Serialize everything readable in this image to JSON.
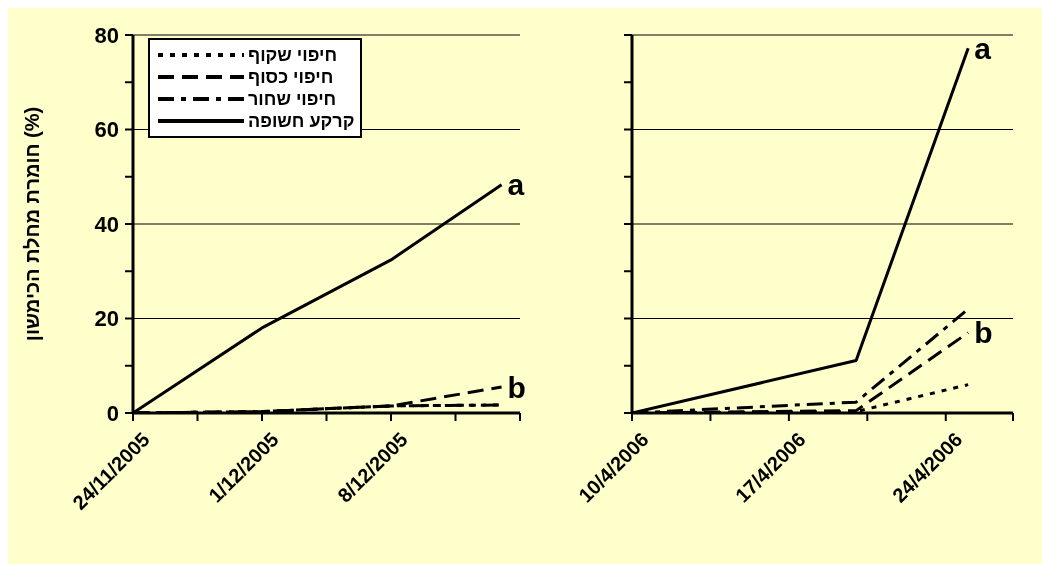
{
  "chart_data": [
    {
      "type": "line",
      "ylabel": "חומרת מחלת הכימשון (%)",
      "xlim": [
        "2005-11-24",
        "2005-12-15"
      ],
      "xticks": [
        {
          "value": "2005-11-24",
          "label": "24/11/2005"
        },
        {
          "value": "2005-11-27T12:00",
          "label": null
        },
        {
          "value": "2005-12-01",
          "label": "1/12/2005"
        },
        {
          "value": "2005-12-04T12:00",
          "label": null
        },
        {
          "value": "2005-12-08",
          "label": "8/12/2005"
        },
        {
          "value": "2005-12-11T12:00",
          "label": null
        },
        {
          "value": "2005-12-15",
          "label": null
        }
      ],
      "ylim": [
        0,
        80
      ],
      "yticks": [
        0,
        {
          "value": 10,
          "label": null
        },
        20,
        {
          "value": 30,
          "label": null
        },
        40,
        {
          "value": 50,
          "label": null
        },
        60,
        {
          "value": 70,
          "label": null
        },
        80
      ],
      "grid": "y",
      "legend": "top left",
      "x": [
        "2005-11-24",
        "2005-12-01",
        "2005-12-08",
        "2005-12-14"
      ],
      "series": [
        {
          "name": "חיפוי שקוף",
          "color": "#000000",
          "line_style": "dotted",
          "values": [
            0,
            0.3,
            1.5,
            1.7
          ]
        },
        {
          "name": "חיפוי כסוף",
          "color": "#000000",
          "line_style": "dashed",
          "values": [
            0,
            0.3,
            1.5,
            5.5
          ]
        },
        {
          "name": "חיפוי שחור",
          "color": "#000000",
          "line_style": "dashdot",
          "values": [
            0,
            0.3,
            1.5,
            1.7
          ]
        },
        {
          "name": "קרקע חשופה",
          "color": "#000000",
          "line_style": "solid",
          "values": [
            0,
            18,
            32.4,
            48.3
          ]
        }
      ],
      "annotations": [
        {
          "text": "a",
          "x": "2005-12-14",
          "y": 48.3
        },
        {
          "text": "b",
          "x": "2005-12-14",
          "y": 5.5
        }
      ]
    },
    {
      "type": "line",
      "xlim": [
        "2006-04-10",
        "2006-04-27"
      ],
      "xticks": [
        {
          "value": "2006-04-10",
          "label": "10/4/2006"
        },
        {
          "value": "2006-04-13T12:00",
          "label": null
        },
        {
          "value": "2006-04-17",
          "label": "17/4/2006"
        },
        {
          "value": "2006-04-20T12:00",
          "label": null
        },
        {
          "value": "2006-04-24",
          "label": "24/4/2006"
        },
        {
          "value": "2006-04-27",
          "label": null
        }
      ],
      "ylim": [
        0,
        80
      ],
      "yticks": [
        0,
        {
          "value": 10,
          "label": null
        },
        20,
        {
          "value": 30,
          "label": null
        },
        40,
        {
          "value": 50,
          "label": null
        },
        60,
        {
          "value": 70,
          "label": null
        },
        80
      ],
      "grid": "y",
      "tick_labels": "x",
      "x": [
        "2006-04-10",
        "2006-04-20",
        "2006-04-25"
      ],
      "series": [
        {
          "color": "#000000",
          "line_style": "dotted",
          "values": [
            0,
            0.3,
            6
          ]
        },
        {
          "color": "#000000",
          "line_style": "dashed",
          "values": [
            0,
            0.5,
            17
          ]
        },
        {
          "color": "#000000",
          "line_style": "dashdot",
          "values": [
            0,
            2.3,
            22
          ]
        },
        {
          "color": "#000000",
          "line_style": "solid",
          "values": [
            0,
            11.1,
            77.2
          ]
        }
      ],
      "annotations": [
        {
          "text": "a",
          "x": "2006-04-25",
          "y": 77.2
        },
        {
          "text": "b",
          "x": "2006-04-25",
          "y": 17
        }
      ]
    }
  ]
}
